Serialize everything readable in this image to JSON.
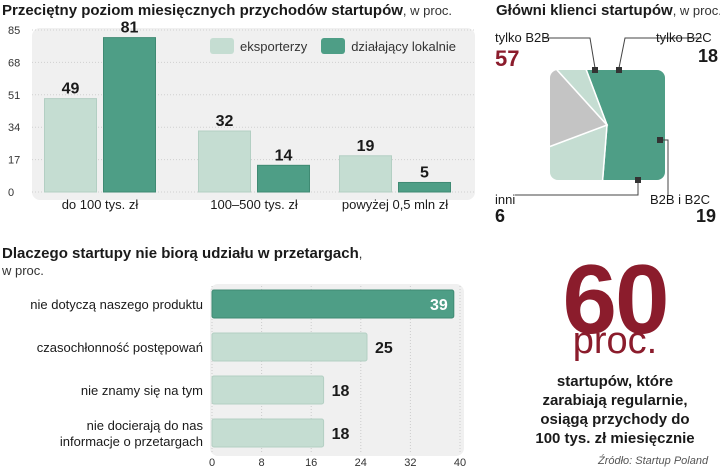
{
  "bar_chart": {
    "title": "Przeciętny poziom miesięcznych przychodów startupów",
    "subtitle": ", w proc."
  },
  "pie_chart": {
    "title": "Główni klienci startupów",
    "subtitle": ", w proc."
  },
  "hbar_chart": {
    "title": "Dlaczego startupy nie biorą udziału w przetargach",
    "subtitle": ",",
    "subtitle2": "w proc."
  },
  "stat": {
    "value": "60",
    "unit": "proc.",
    "lines": [
      "startupów, które",
      "zarabiają regularnie,",
      "osiągą przychody do",
      "100 tys. zł miesięcznie"
    ]
  },
  "source": "Źródło: Startup Poland",
  "colors": {
    "light": "#c5ddd2",
    "dark": "#4e9e86",
    "gray": "#c4c4c4",
    "accent": "#8b1c2c"
  },
  "chart_data": [
    {
      "type": "bar",
      "title": "Przeciętny poziom miesięcznych przychodów startupów, w proc.",
      "categories": [
        "do 100 tys. zł",
        "100–500 tys. zł",
        "powyżej 0,5 mln zł"
      ],
      "series": [
        {
          "name": "eksporterzy",
          "values": [
            49,
            32,
            19
          ]
        },
        {
          "name": "działający lokalnie",
          "values": [
            81,
            14,
            5
          ]
        }
      ],
      "ylim": [
        0,
        85
      ],
      "yticks": [
        0,
        17,
        34,
        51,
        68,
        85
      ],
      "legend": "top-right"
    },
    {
      "type": "pie",
      "title": "Główni klienci startupów, w proc.",
      "labels": [
        "tylko B2B",
        "tylko B2C",
        "B2B i B2C",
        "inni"
      ],
      "values": [
        57,
        18,
        19,
        6
      ]
    },
    {
      "type": "bar",
      "orientation": "horizontal",
      "title": "Dlaczego startupy nie biorą udziału w przetargach, w proc.",
      "categories": [
        "nie dotyczą naszego produktu",
        "czasochłonność postępowań",
        "nie znamy się na tym",
        "nie docierają do nas\ninformacje o przetargach"
      ],
      "values": [
        39,
        25,
        18,
        18
      ],
      "highlight": [
        true,
        false,
        false,
        false
      ],
      "xlim": [
        0,
        40
      ],
      "xticks": [
        0,
        8,
        16,
        24,
        32,
        40
      ]
    }
  ]
}
